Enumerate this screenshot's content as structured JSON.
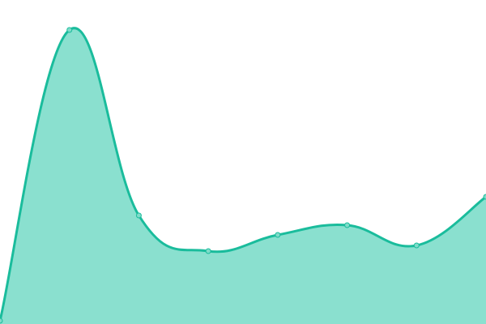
{
  "chart_data": {
    "type": "area",
    "x": [
      0,
      1,
      2,
      3,
      4,
      5,
      6,
      7
    ],
    "values": [
      4,
      363,
      134,
      90,
      110,
      122,
      97,
      157
    ],
    "ylim": [
      0,
      400
    ],
    "grid": false,
    "axes_visible": false,
    "smooth": true,
    "colors": {
      "line": "#1abc9c",
      "fill": "#8ae0cf",
      "point": "#7fdcc9"
    }
  }
}
